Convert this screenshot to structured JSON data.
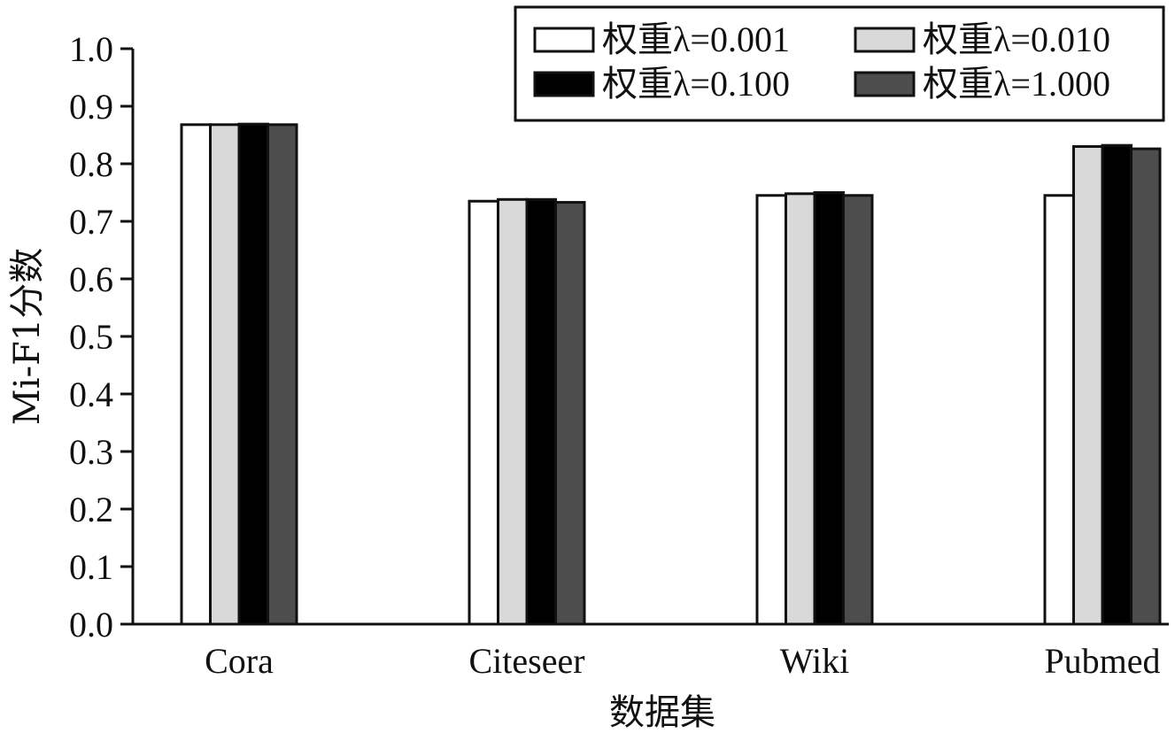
{
  "chart_data": {
    "type": "bar",
    "categories": [
      "Cora",
      "Citeseer",
      "Wiki",
      "Pubmed"
    ],
    "series": [
      {
        "name": "权重λ=0.001",
        "values": [
          0.868,
          0.735,
          0.745,
          0.745
        ],
        "color": "#ffffff"
      },
      {
        "name": "权重λ=0.010",
        "values": [
          0.868,
          0.738,
          0.748,
          0.83
        ],
        "color": "#d9d9d9"
      },
      {
        "name": "权重λ=0.100",
        "values": [
          0.869,
          0.738,
          0.75,
          0.832
        ],
        "color": "#000000"
      },
      {
        "name": "权重λ=1.000",
        "values": [
          0.868,
          0.733,
          0.745,
          0.826
        ],
        "color": "#4d4d4d"
      }
    ],
    "xlabel": "数据集",
    "ylabel": "Mi-F1分数",
    "ylim": [
      0.0,
      1.0
    ],
    "yticks": [
      "0.0",
      "0.1",
      "0.2",
      "0.3",
      "0.4",
      "0.5",
      "0.6",
      "0.7",
      "0.8",
      "0.9",
      "1.0"
    ],
    "legend_position": "top-right",
    "grid": false
  }
}
